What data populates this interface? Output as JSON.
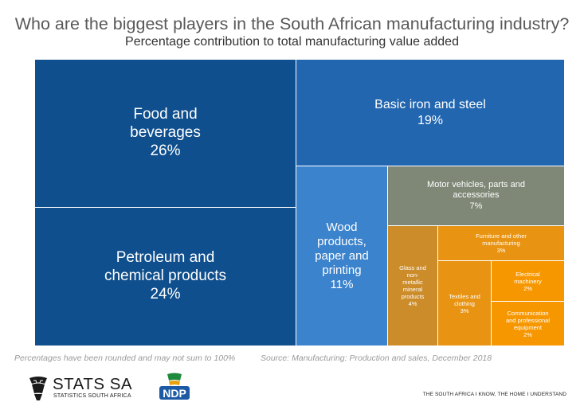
{
  "header": {
    "title": "Who are the biggest players in the South African manufacturing industry?",
    "subtitle": "Percentage contribution to total manufacturing value added"
  },
  "chart_data": {
    "type": "treemap",
    "title": "Who are the biggest players in the South African manufacturing industry?",
    "subtitle": "Percentage contribution to total manufacturing value added",
    "unit": "%",
    "items": [
      {
        "label": "Food and beverages",
        "display": "Food and\nbeverages",
        "value": 26,
        "value_label": "26%",
        "color": "#0f4f8d"
      },
      {
        "label": "Petroleum and chemical products",
        "display": "Petroleum and\nchemical products",
        "value": 24,
        "value_label": "24%",
        "color": "#0f4f8d"
      },
      {
        "label": "Basic iron and steel",
        "display": "Basic iron and steel",
        "value": 19,
        "value_label": "19%",
        "color": "#2266b0"
      },
      {
        "label": "Wood products, paper and printing",
        "display": "Wood\nproducts,\npaper and\nprinting",
        "value": 11,
        "value_label": "11%",
        "color": "#3b83cc"
      },
      {
        "label": "Motor vehicles, parts and accessories",
        "display": "Motor vehicles, parts and\naccessories",
        "value": 7,
        "value_label": "7%",
        "color": "#7f8877"
      },
      {
        "label": "Glass and non-metallic mineral products",
        "display": "Glass and\nnon-\nmetallic\nmineral\nproducts",
        "value": 4,
        "value_label": "4%",
        "color": "#cc8c2a"
      },
      {
        "label": "Furniture and other manufacturing",
        "display": "Furniture and other\nmanufacturing",
        "value": 3,
        "value_label": "3%",
        "color": "#e89311"
      },
      {
        "label": "Textiles and clothing",
        "display": "Textiles and\nclothing",
        "value": 3,
        "value_label": "3%",
        "color": "#e89311"
      },
      {
        "label": "Electrical machinery",
        "display": "Electrical\nmachinery",
        "value": 2,
        "value_label": "2%",
        "color": "#f79700"
      },
      {
        "label": "Communication and professional equipment",
        "display": "Communication\nand professional\nequipment",
        "value": 2,
        "value_label": "2%",
        "color": "#f79700"
      }
    ]
  },
  "footer": {
    "note": "Percentages have been rounded and may not sum to 100%",
    "source": "Source: Manufacturing: Production and sales, December 2018",
    "logo_name": "STATS SA",
    "logo_sub": "STATISTICS SOUTH AFRICA",
    "ndp_label": "NDP",
    "tagline": "THE SOUTH AFRICA I KNOW, THE HOME I UNDERSTAND"
  }
}
